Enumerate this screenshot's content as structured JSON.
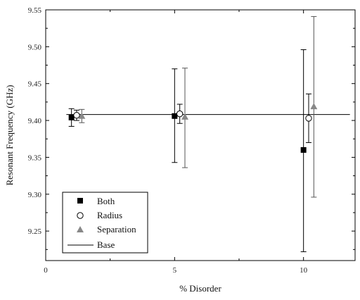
{
  "chart_data": {
    "type": "scatter",
    "title": "",
    "xlabel": "% Disorder",
    "ylabel": "Resonant Frequency (GHz)",
    "xlim": [
      0,
      12
    ],
    "ylim": [
      9.21,
      9.55
    ],
    "x_ticks": [
      "0",
      "5",
      "10"
    ],
    "y_ticks": [
      "9.25",
      "9.30",
      "9.35",
      "9.40",
      "9.45",
      "9.50",
      "9.55"
    ],
    "legend_position": "bottom-left",
    "series": [
      {
        "name": "Both",
        "marker": "filled-square",
        "color": "#000000",
        "points": [
          {
            "x": 1.0,
            "y": 9.404,
            "err_low": 9.392,
            "err_high": 9.416
          },
          {
            "x": 5.0,
            "y": 9.406,
            "err_low": 9.343,
            "err_high": 9.47
          },
          {
            "x": 10.0,
            "y": 9.36,
            "err_low": 9.222,
            "err_high": 9.496
          }
        ]
      },
      {
        "name": "Radius",
        "marker": "open-circle",
        "color": "#000000",
        "points": [
          {
            "x": 1.2,
            "y": 9.407,
            "err_low": 9.4,
            "err_high": 9.414
          },
          {
            "x": 5.2,
            "y": 9.409,
            "err_low": 9.396,
            "err_high": 9.422
          },
          {
            "x": 10.2,
            "y": 9.403,
            "err_low": 9.37,
            "err_high": 9.436
          }
        ]
      },
      {
        "name": "Separation",
        "marker": "filled-triangle",
        "color": "#888888",
        "points": [
          {
            "x": 1.4,
            "y": 9.406,
            "err_low": 9.397,
            "err_high": 9.415
          },
          {
            "x": 5.4,
            "y": 9.405,
            "err_low": 9.336,
            "err_high": 9.471
          },
          {
            "x": 10.4,
            "y": 9.419,
            "err_low": 9.296,
            "err_high": 9.541
          }
        ]
      }
    ],
    "base_line": {
      "name": "Base",
      "y": 9.408,
      "x_start": 0.8,
      "x_end": 11.8
    }
  }
}
